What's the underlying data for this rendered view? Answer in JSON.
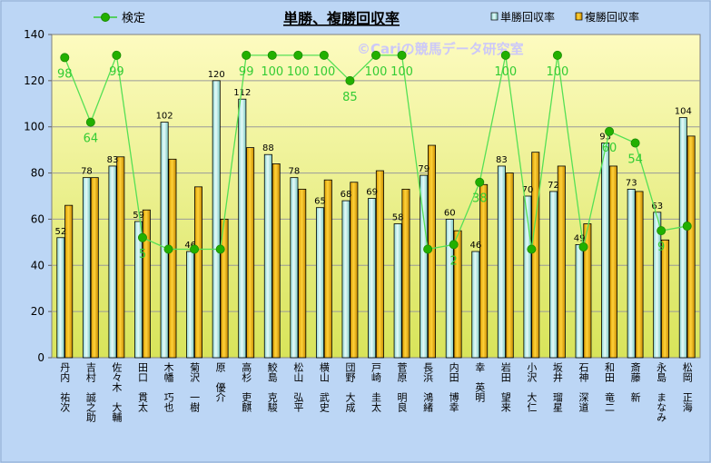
{
  "chart_data": {
    "type": "bar+line",
    "title": "単勝、複勝回収率",
    "watermark": "©Cariの競馬データ研究室",
    "categories": [
      "丹内 祐次",
      "吉村 誠之助",
      "佐々木 大輔",
      "田口 貫太",
      "木幡 巧也",
      "菊沢 一樹",
      "原 優介",
      "高杉 吏麒",
      "鮫島 克駿",
      "松山 弘平",
      "横山 武史",
      "団野 大成",
      "戸崎 圭太",
      "菅原 明良",
      "長浜 鴻緒",
      "内田 博幸",
      "幸 英明",
      "岩田 望来",
      "小沢 大仁",
      "坂井 瑠星",
      "石神 深道",
      "和田 竜二",
      "斎藤 新",
      "永島 まなみ",
      "松岡 正海"
    ],
    "categories_vertical": [
      "丹内　祐次",
      "吉村　誠之助",
      "佐々木　大輔",
      "田口　貫太",
      "木幡　巧也",
      "菊沢　一樹",
      "原　優介",
      "高杉　吏麒",
      "鮫島　克駿",
      "松山　弘平",
      "横山　武史",
      "団野　大成",
      "戸崎　圭太",
      "菅原　明良",
      "長浜　鴻緒",
      "内田　博幸",
      "幸　英明",
      "岩田　望来",
      "小沢　大仁",
      "坂井　瑠星",
      "石神　深道",
      "和田　竜二",
      "斎藤　新",
      "永島　まなみ",
      "松岡　正海"
    ],
    "series": [
      {
        "name": "単勝回収率",
        "kind": "bar",
        "color": "#c8f0ee",
        "values": [
          52,
          78,
          83,
          59,
          102,
          46,
          120,
          112,
          88,
          78,
          65,
          68,
          69,
          58,
          79,
          60,
          46,
          83,
          70,
          72,
          49,
          93,
          73,
          63,
          104
        ]
      },
      {
        "name": "複勝回収率",
        "kind": "bar",
        "color": "#f2b800",
        "values": [
          66,
          78,
          87,
          64,
          86,
          74,
          60,
          91,
          84,
          73,
          77,
          76,
          81,
          73,
          92,
          55,
          75,
          80,
          89,
          83,
          58,
          83,
          72,
          51,
          96
        ]
      },
      {
        "name": "検定",
        "kind": "line",
        "color": "#33cc33",
        "marker_color": "#22b000",
        "values": [
          130,
          102,
          131,
          52,
          47,
          47,
          47,
          131,
          131,
          131,
          131,
          120,
          131,
          131,
          47,
          49,
          76,
          131,
          47,
          131,
          48,
          98,
          93,
          55,
          57
        ],
        "labels": [
          "98",
          "64",
          "99",
          "5",
          "",
          "",
          "",
          "99",
          "100",
          "100",
          "100",
          "85",
          "100",
          "100",
          "",
          "2",
          "38",
          "100",
          "",
          "100",
          "",
          "60",
          "54",
          "9",
          ""
        ]
      }
    ],
    "ylim": [
      0,
      140
    ],
    "yticks": [
      "0",
      "20",
      "40",
      "60",
      "80",
      "100",
      "120",
      "140"
    ],
    "bar_labels": [
      "52",
      "78",
      "83",
      "59",
      "102",
      "46",
      "120",
      "112",
      "88",
      "78",
      "65",
      "68",
      "69",
      "58",
      "79",
      "60",
      "46",
      "83",
      "70",
      "72",
      "49",
      "93",
      "73",
      "63",
      "104"
    ],
    "legend": {
      "line": "検定",
      "bar1": "単勝回収率",
      "bar2": "複勝回収率"
    },
    "grid": true,
    "colors": {
      "plot_bg_top": "#fdfbc0",
      "plot_bg_bottom": "#d8e45a",
      "frame_bg": "#bcd6f5",
      "line_label": "#33cc33"
    }
  }
}
